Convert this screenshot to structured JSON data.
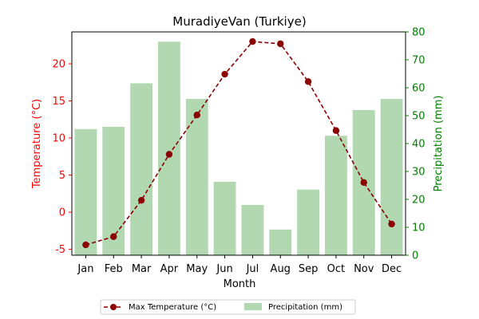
{
  "chart_data": {
    "type": "bar",
    "title": "MuradiyeVan (Turkiye)",
    "xlabel": "Month",
    "categories": [
      "Jan",
      "Feb",
      "Mar",
      "Apr",
      "May",
      "Jun",
      "Jul",
      "Aug",
      "Sep",
      "Oct",
      "Nov",
      "Dec"
    ],
    "series": [
      {
        "name": "Max Temperature (°C)",
        "type": "line",
        "axis": "left",
        "values": [
          -4.4,
          -3.3,
          1.6,
          7.8,
          13.1,
          18.6,
          23.0,
          22.7,
          17.6,
          11.0,
          4.0,
          -1.6
        ],
        "color": "#8b0000",
        "style": "dashed",
        "marker": "circle"
      },
      {
        "name": "Precipitation (mm)",
        "type": "bar",
        "axis": "right",
        "values": [
          45.2,
          46.0,
          61.6,
          76.5,
          56.0,
          26.3,
          18.0,
          9.2,
          23.5,
          42.8,
          52.0,
          56.0
        ],
        "color": "#b2d8b2"
      }
    ],
    "y_left": {
      "label": "Temperature (°C)",
      "range": [
        -5.8,
        24.3
      ],
      "ticks": [
        -5,
        0,
        5,
        10,
        15,
        20
      ],
      "color": "#ff0000"
    },
    "y_right": {
      "label": "Precipitation (mm)",
      "range": [
        0,
        80
      ],
      "ticks": [
        0,
        10,
        20,
        30,
        40,
        50,
        60,
        70,
        80
      ],
      "color": "#008000"
    },
    "grid": false,
    "legend_position": "bottom-center"
  }
}
